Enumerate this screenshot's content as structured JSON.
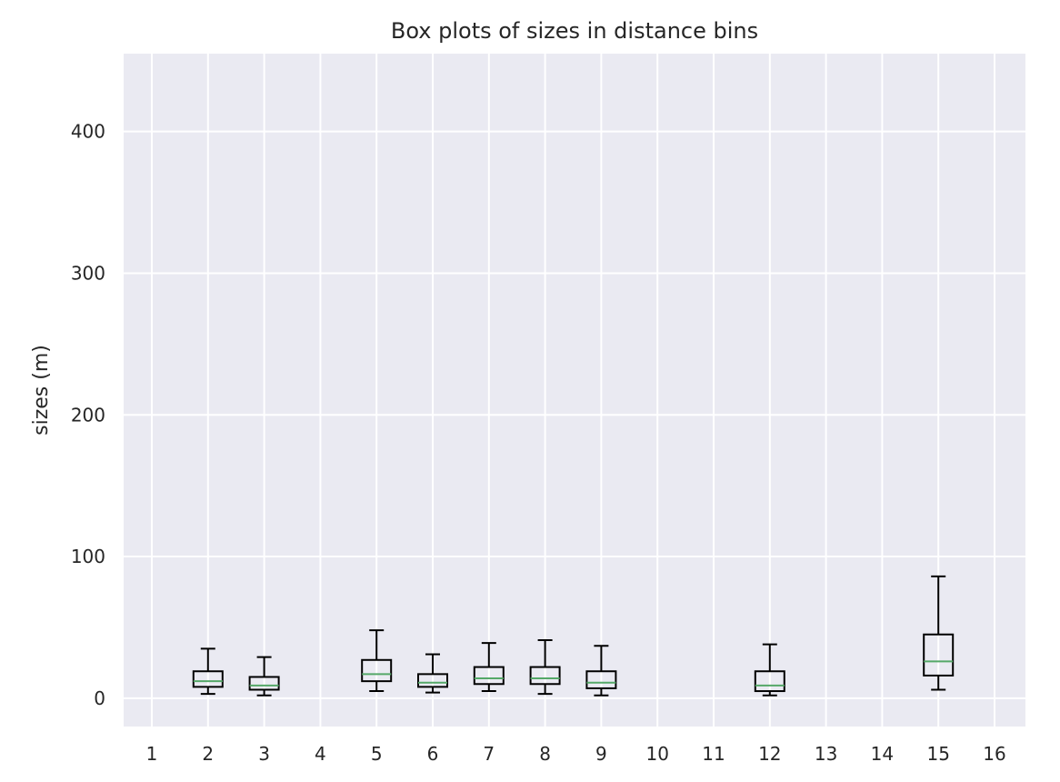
{
  "chart_data": {
    "type": "box",
    "title": "Box plots of sizes in distance bins",
    "xlabel": "",
    "ylabel": "sizes (m)",
    "categories": [
      "1",
      "2",
      "3",
      "4",
      "5",
      "6",
      "7",
      "8",
      "9",
      "10",
      "11",
      "12",
      "13",
      "14",
      "15",
      "16"
    ],
    "ylim": [
      -20,
      455
    ],
    "yticks": [
      0,
      100,
      200,
      300,
      400
    ],
    "grid": true,
    "boxes": [
      {
        "category": "2",
        "whisker_low": 3,
        "q1": 8,
        "median": 12,
        "q3": 19,
        "whisker_high": 35
      },
      {
        "category": "3",
        "whisker_low": 2,
        "q1": 6,
        "median": 9,
        "q3": 15,
        "whisker_high": 29
      },
      {
        "category": "5",
        "whisker_low": 5,
        "q1": 12,
        "median": 17,
        "q3": 27,
        "whisker_high": 48
      },
      {
        "category": "6",
        "whisker_low": 4,
        "q1": 8,
        "median": 11,
        "q3": 17,
        "whisker_high": 31
      },
      {
        "category": "7",
        "whisker_low": 5,
        "q1": 10,
        "median": 14,
        "q3": 22,
        "whisker_high": 39
      },
      {
        "category": "8",
        "whisker_low": 3,
        "q1": 10,
        "median": 14,
        "q3": 22,
        "whisker_high": 41
      },
      {
        "category": "9",
        "whisker_low": 2,
        "q1": 7,
        "median": 11,
        "q3": 19,
        "whisker_high": 37
      },
      {
        "category": "12",
        "whisker_low": 2,
        "q1": 5,
        "median": 9,
        "q3": 19,
        "whisker_high": 38
      },
      {
        "category": "15",
        "whisker_low": 6,
        "q1": 16,
        "median": 26,
        "q3": 45,
        "whisker_high": 86
      }
    ],
    "colors": {
      "background": "#eaeaf2",
      "grid": "#ffffff",
      "box": "#000000",
      "median": "#55a868"
    }
  }
}
